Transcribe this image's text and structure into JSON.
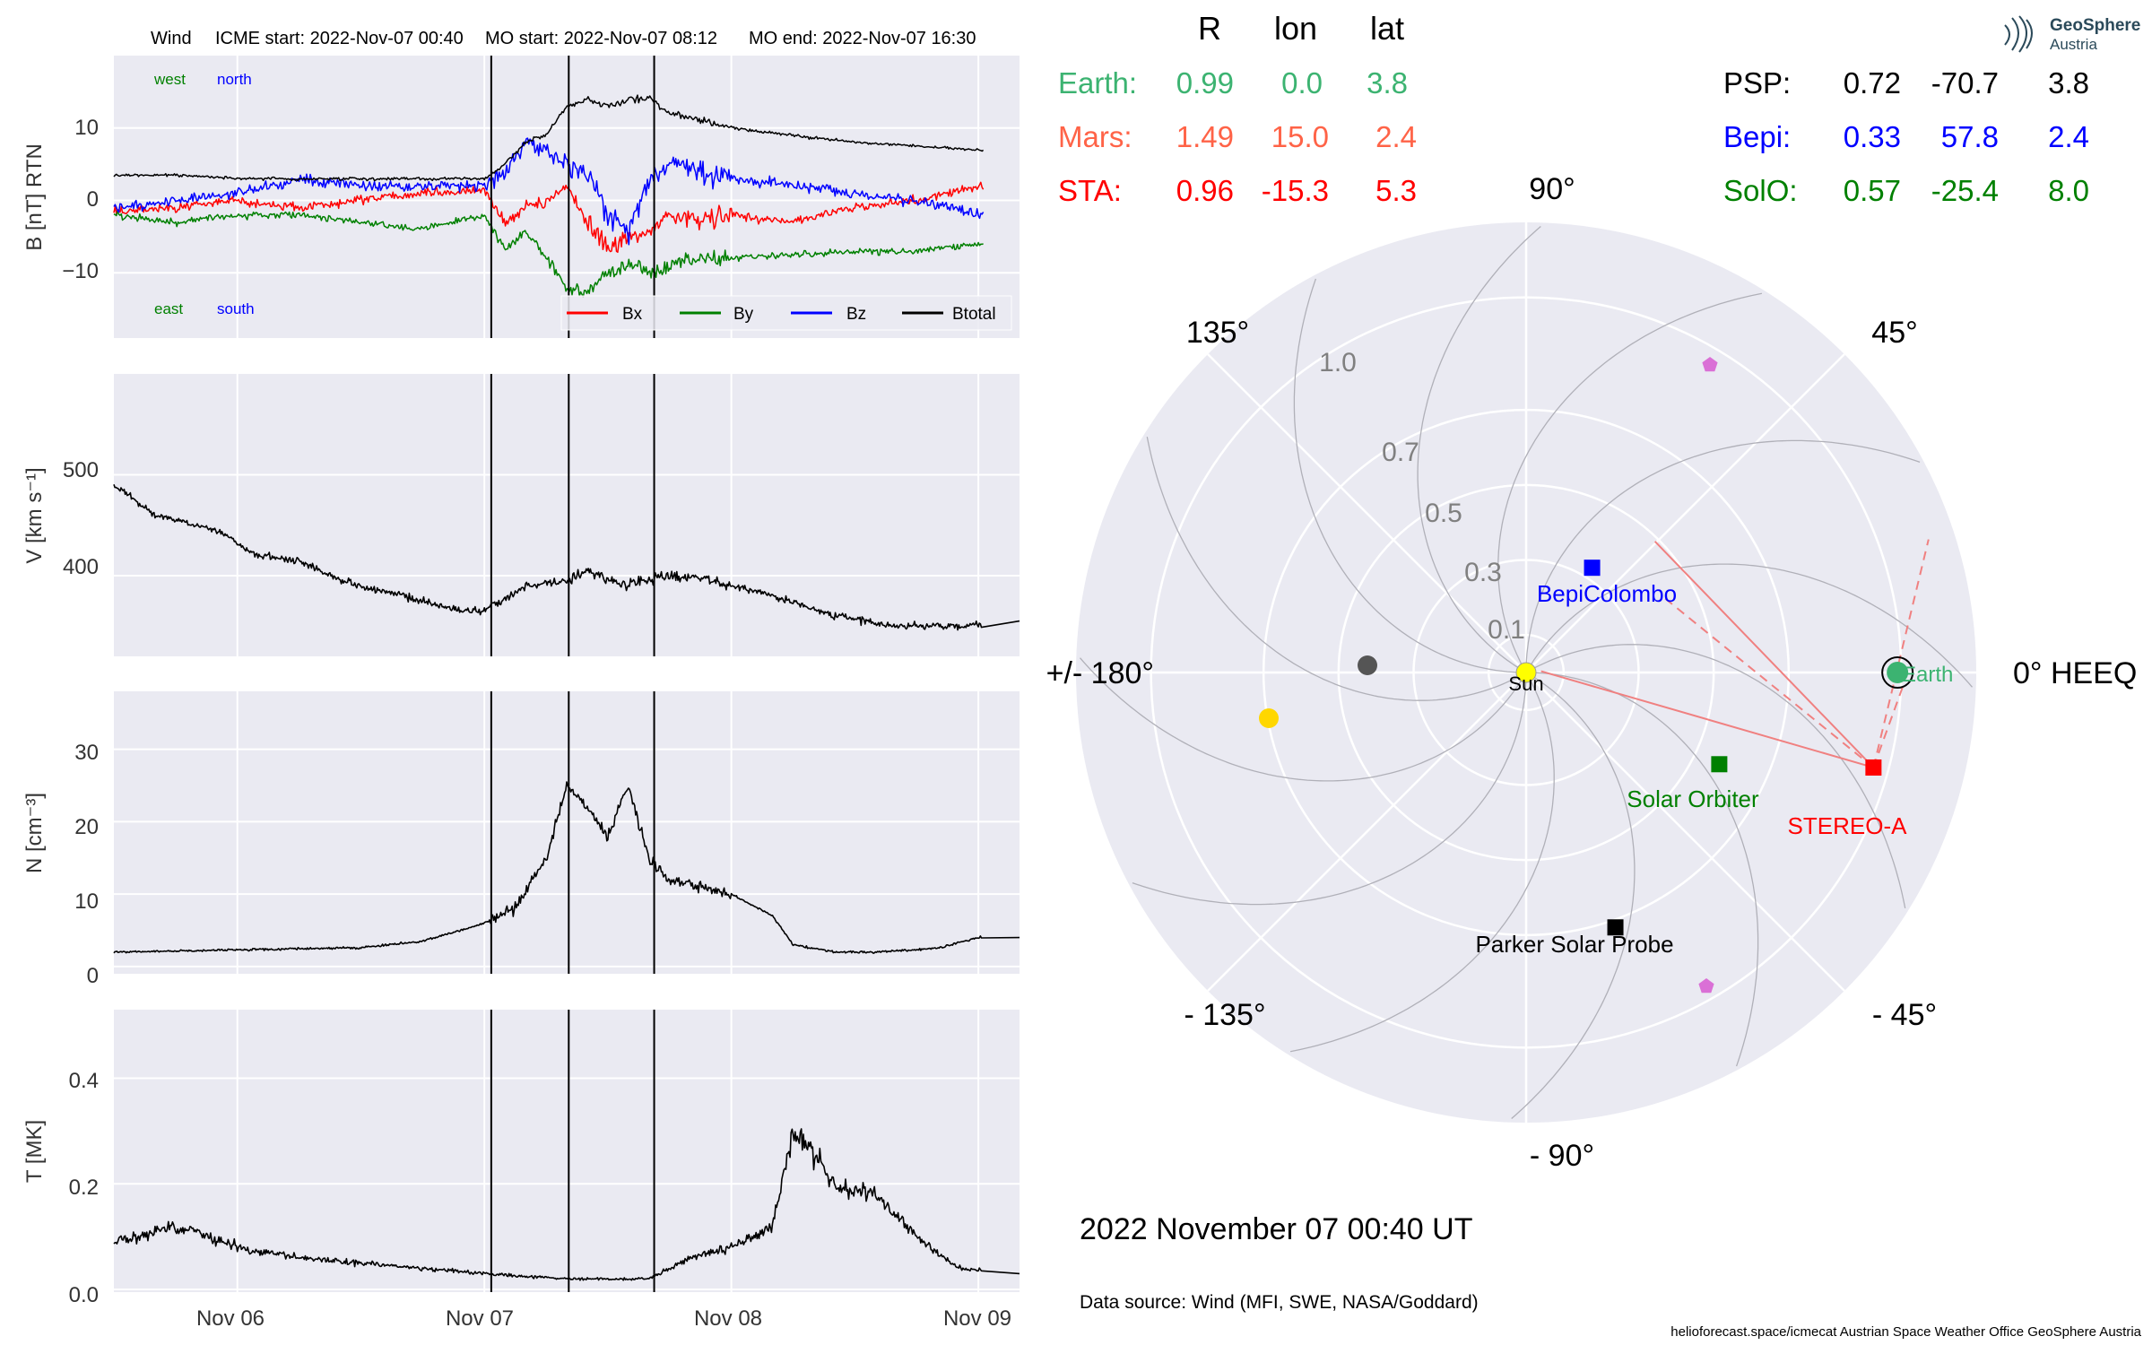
{
  "colors": {
    "bx": "#ff0000",
    "by": "#008000",
    "bz": "#0000ff",
    "btotal": "#000000",
    "panel_bg": "#eaeaf2",
    "grid": "#ffffff",
    "black": "#000000",
    "earth": "#3cb371",
    "mars": "#ff6347",
    "sta": "#ff0000",
    "psp": "#000000",
    "bepi": "#0000ff",
    "solo": "#008000",
    "sun": "#ffff00",
    "planet_yellow": "#ffd700",
    "planet_grey": "#555555",
    "pentagon": "#da70d6",
    "line_red": "#f08080",
    "label_grey": "#888888"
  },
  "timeseries": {
    "title": {
      "instrument": "Wind",
      "icme": "ICME start: 2022-Nov-07 00:40",
      "mo_start": "MO start: 2022-Nov-07 08:12",
      "mo_end": "MO end: 2022-Nov-07 16:30"
    },
    "x_ticks": [
      "Nov 06",
      "Nov 07",
      "Nov 08",
      "Nov 09"
    ],
    "b_panel": {
      "ylabel": "B [nT] RTN",
      "yticks": [
        "10",
        "0",
        "−10"
      ],
      "west": "west",
      "north": "north",
      "east": "east",
      "south": "south",
      "legend": [
        "Bx",
        "By",
        "Bz",
        "Btotal"
      ]
    },
    "v_panel": {
      "ylabel": "V [km s⁻¹]",
      "yticks": [
        "500",
        "400"
      ]
    },
    "n_panel": {
      "ylabel": "N [cm⁻³]",
      "yticks": [
        "30",
        "20",
        "10",
        "0"
      ]
    },
    "t_panel": {
      "ylabel": "T [MK]",
      "yticks": [
        "0.4",
        "0.2",
        "0.0"
      ]
    }
  },
  "chart_data": [
    {
      "type": "line",
      "title": "Wind    ICME start: 2022-Nov-07 00:40   MO start: 2022-Nov-07 08:12   MO end: 2022-Nov-07 16:30",
      "ylabel": "B [nT] RTN",
      "xlim": [
        "2022-11-05 12:00",
        "2022-11-09 04:00"
      ],
      "ylim": [
        -19,
        20
      ],
      "x_ticks": [
        "Nov 06",
        "Nov 07",
        "Nov 08",
        "Nov 09"
      ],
      "y_ticks": [
        -10,
        0,
        10
      ],
      "events_hours_from_nov05_12": [
        36.67,
        44.2,
        52.5
      ],
      "x": [
        "Nov05 12:00",
        "Nov05 18:00",
        "Nov06 00:00",
        "Nov06 06:00",
        "Nov06 12:00",
        "Nov06 18:00",
        "Nov07 00:00",
        "Nov07 02:00",
        "Nov07 04:00",
        "Nov07 06:00",
        "Nov07 08:00",
        "Nov07 10:00",
        "Nov07 12:00",
        "Nov07 14:00",
        "Nov07 16:00",
        "Nov07 18:00",
        "Nov07 21:00",
        "Nov08 00:00",
        "Nov08 06:00",
        "Nov08 12:00",
        "Nov08 18:00",
        "Nov09 00:00"
      ],
      "series": [
        {
          "name": "Bx",
          "values": [
            -1.5,
            -1,
            0,
            -1,
            0,
            1,
            1.5,
            -3,
            -1,
            0,
            2,
            -3,
            -7,
            -5,
            -4,
            -2,
            -3,
            -2,
            -3,
            -1,
            0,
            2
          ]
        },
        {
          "name": "By",
          "values": [
            -2,
            -3,
            -2,
            -2,
            -3,
            -4,
            -2,
            -7,
            -4,
            -8,
            -12,
            -13,
            -10,
            -9,
            -10,
            -9,
            -8,
            -8,
            -7.5,
            -7,
            -7,
            -6
          ]
        },
        {
          "name": "Bz",
          "values": [
            -1,
            0,
            1,
            3,
            2,
            2,
            2,
            4,
            8,
            7,
            5,
            4,
            -2,
            -4,
            3,
            5,
            4,
            3,
            2,
            1,
            0,
            -2
          ]
        },
        {
          "name": "Btotal",
          "values": [
            3.5,
            3.5,
            3,
            3,
            3,
            3,
            3,
            5,
            8,
            9,
            13,
            14,
            13,
            14,
            14,
            12,
            11,
            10,
            9,
            8,
            7.5,
            7
          ]
        }
      ]
    },
    {
      "type": "line",
      "ylabel": "V [km s⁻¹]",
      "ylim": [
        320,
        600
      ],
      "y_ticks": [
        400,
        500
      ],
      "x": [
        "Nov05 12:00",
        "Nov05 16:00",
        "Nov05 22:00",
        "Nov06 02:00",
        "Nov06 06:00",
        "Nov06 10:00",
        "Nov06 14:00",
        "Nov06 18:00",
        "Nov06 22:00",
        "Nov07 00:00",
        "Nov07 04:00",
        "Nov07 08:00",
        "Nov07 10:00",
        "Nov07 14:00",
        "Nov07 18:00",
        "Nov07 22:00",
        "Nov08 04:00",
        "Nov08 10:00",
        "Nov08 16:00",
        "Nov08 22:00",
        "Nov09 04:00"
      ],
      "series": [
        {
          "name": "V",
          "values": [
            490,
            460,
            445,
            420,
            415,
            395,
            385,
            375,
            365,
            365,
            390,
            395,
            405,
            390,
            400,
            395,
            380,
            360,
            350,
            350,
            355
          ]
        }
      ]
    },
    {
      "type": "line",
      "ylabel": "N [cm⁻³]",
      "ylim": [
        -1,
        38
      ],
      "y_ticks": [
        0,
        10,
        20,
        30
      ],
      "x": [
        "Nov05 12:00",
        "Nov06 00:00",
        "Nov06 12:00",
        "Nov06 18:00",
        "Nov07 00:00",
        "Nov07 03:00",
        "Nov07 06:00",
        "Nov07 08:00",
        "Nov07 10:00",
        "Nov07 12:00",
        "Nov07 14:00",
        "Nov07 16:00",
        "Nov07 18:00",
        "Nov07 21:00",
        "Nov08 00:00",
        "Nov08 04:00",
        "Nov08 06:00",
        "Nov08 10:00",
        "Nov08 14:00",
        "Nov08 20:00",
        "Nov09 00:00",
        "Nov09 04:00"
      ],
      "series": [
        {
          "name": "N",
          "values": [
            2,
            2.3,
            2.6,
            3.5,
            6,
            8,
            15,
            25,
            22,
            18,
            25,
            15,
            12,
            11,
            10,
            7,
            3,
            2,
            2,
            2.5,
            4,
            4
          ]
        }
      ]
    },
    {
      "type": "line",
      "ylabel": "T [MK]",
      "ylim": [
        -0.005,
        0.53
      ],
      "y_ticks": [
        0.0,
        0.2,
        0.4
      ],
      "x": [
        "Nov05 12:00",
        "Nov05 18:00",
        "Nov06 00:00",
        "Nov06 06:00",
        "Nov06 12:00",
        "Nov06 18:00",
        "Nov07 00:00",
        "Nov07 08:00",
        "Nov07 16:00",
        "Nov07 20:00",
        "Nov08 00:00",
        "Nov08 04:00",
        "Nov08 06:00",
        "Nov08 10:00",
        "Nov08 14:00",
        "Nov08 18:00",
        "Nov08 22:00",
        "Nov09 04:00"
      ],
      "series": [
        {
          "name": "T",
          "values": [
            0.09,
            0.12,
            0.08,
            0.06,
            0.05,
            0.04,
            0.03,
            0.02,
            0.02,
            0.06,
            0.08,
            0.12,
            0.3,
            0.2,
            0.18,
            0.1,
            0.04,
            0.03
          ]
        }
      ]
    },
    {
      "type": "scatter",
      "title": "0° HEEQ",
      "projection": "polar",
      "r_ticks": [
        0.1,
        0.3,
        0.5,
        0.7,
        1.0
      ],
      "angle_labels": [
        "90°",
        "45°",
        "0° HEEQ",
        "- 45°",
        "- 90°",
        "- 135°",
        "+/- 180°",
        "135°"
      ],
      "points": [
        {
          "name": "Sun",
          "r": 0.0,
          "lon": 0.0
        },
        {
          "name": "Earth",
          "r": 0.99,
          "lon": 0.0
        },
        {
          "name": "BepiColombo",
          "r": 0.33,
          "lon": 57.8
        },
        {
          "name": "Solar Orbiter",
          "r": 0.57,
          "lon": -25.4
        },
        {
          "name": "STEREO-A",
          "r": 0.96,
          "lon": -15.3
        },
        {
          "name": "Parker Solar Probe",
          "r": 0.72,
          "lon": -70.7
        }
      ]
    }
  ],
  "positions_table": {
    "header": [
      "R",
      "lon",
      "lat"
    ],
    "left": [
      {
        "name": "Earth:",
        "r": "0.99",
        "lon": "0.0",
        "lat": "3.8",
        "color": "#3cb371"
      },
      {
        "name": "Mars:",
        "r": "1.49",
        "lon": "15.0",
        "lat": "2.4",
        "color": "#ff6347"
      },
      {
        "name": "STA:",
        "r": "0.96",
        "lon": "-15.3",
        "lat": "5.3",
        "color": "#ff0000"
      }
    ],
    "right": [
      {
        "name": "PSP:",
        "r": "0.72",
        "lon": "-70.7",
        "lat": "3.8",
        "color": "#000000"
      },
      {
        "name": "Bepi:",
        "r": "0.33",
        "lon": "57.8",
        "lat": "2.4",
        "color": "#0000ff"
      },
      {
        "name": "SolO:",
        "r": "0.57",
        "lon": "-25.4",
        "lat": "8.0",
        "color": "#008000"
      }
    ]
  },
  "polar": {
    "angle_labels": {
      "a90": "90°",
      "a45": "45°",
      "a0": "0° HEEQ",
      "am45": "- 45°",
      "am90": "- 90°",
      "am135": "- 135°",
      "a180": "+/- 180°",
      "a135": "135°"
    },
    "r_labels": [
      "0.1",
      "0.3",
      "0.5",
      "0.7",
      "1.0"
    ],
    "labels": {
      "sun": "Sun",
      "earth": "Earth",
      "bepi": "BepiColombo",
      "solo": "Solar Orbiter",
      "sta": "STEREO-A",
      "psp": "Parker Solar Probe"
    }
  },
  "logo": {
    "line1": "GeoSphere",
    "line2": "Austria"
  },
  "footer": {
    "date": "2022 November 07  00:40 UT",
    "source": "Data source: Wind (MFI, SWE, NASA/Goddard)",
    "credits": "helioforecast.space/icmecat   Austrian Space Weather Office   GeoSphere Austria"
  }
}
